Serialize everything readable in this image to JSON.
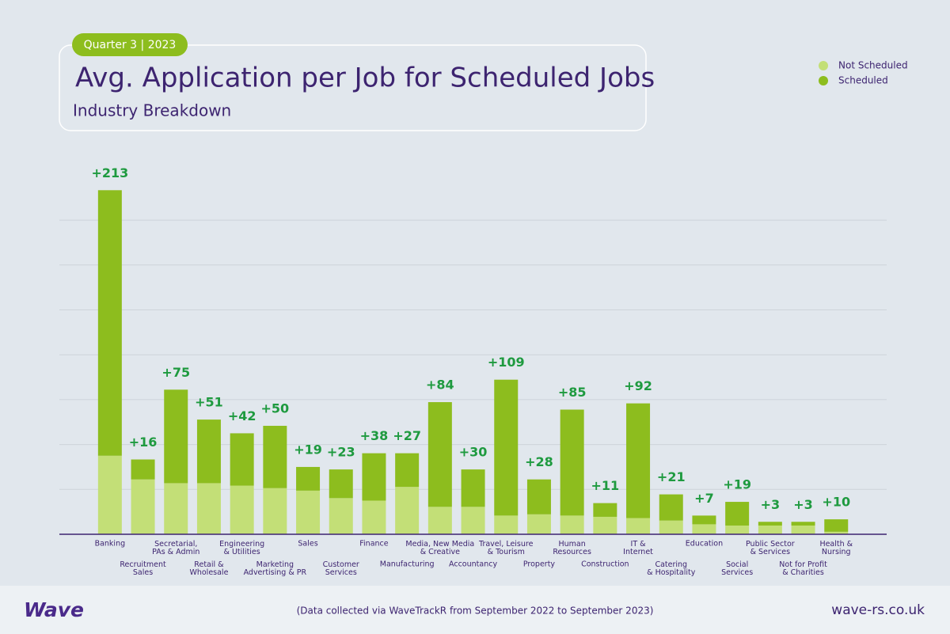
{
  "header": {
    "badge": "Quarter 3 | 2023"
  },
  "chart_data": {
    "type": "stacked-bar",
    "title": "Avg. Application per Job for Scheduled Jobs",
    "subtitle": "Industry Breakdown",
    "categories": [
      "Banking",
      "Recruitment\nSales",
      "Secretarial,\nPAs & Admin",
      "Retail &\nWholesale",
      "Engineering\n& Utilities",
      "Marketing\nAdvertising & PR",
      "Sales",
      "Customer\nServices",
      "Finance",
      "Manufacturing",
      "Media, New Media\n& Creative",
      "Accountancy",
      "Travel, Leisure\n& Tourism",
      "Property",
      "Human\nResources",
      "Construction",
      "IT &\nInternet",
      "Catering\n& Hospitality",
      "Education",
      "Social\nServices",
      "Public Sector\n& Services",
      "Not for Profit\n& Charities",
      "Health &\nNursing"
    ],
    "series": [
      {
        "name": "Not Scheduled",
        "color": "#c3df77",
        "values": [
          63,
          44,
          41,
          41,
          39,
          37,
          35,
          29,
          27,
          38,
          22,
          22,
          15,
          16,
          15,
          14,
          13,
          11,
          8,
          7,
          7,
          7,
          2
        ]
      },
      {
        "name": "Scheduled",
        "color": "#8dbd1e",
        "values": [
          213,
          16,
          75,
          51,
          42,
          50,
          19,
          23,
          38,
          27,
          84,
          30,
          109,
          28,
          85,
          11,
          92,
          21,
          7,
          19,
          3,
          3,
          10
        ],
        "value_labels": [
          "+213",
          "+16",
          "+75",
          "+51",
          "+42",
          "+50",
          "+19",
          "+23",
          "+38",
          "+27",
          "+84",
          "+30",
          "+109",
          "+28",
          "+85",
          "+11",
          "+92",
          "+21",
          "+7",
          "+19",
          "+3",
          "+3",
          "+10"
        ]
      }
    ],
    "ylim": [
      0,
      300
    ],
    "yticks": [
      0,
      36,
      72,
      108,
      144,
      180,
      216,
      252
    ],
    "grid": true,
    "legend": "top-right"
  },
  "footer": {
    "logo": "Wave",
    "note": "(Data collected via WaveTrackR from September 2022 to September 2023)",
    "url": "wave-rs.co.uk"
  }
}
